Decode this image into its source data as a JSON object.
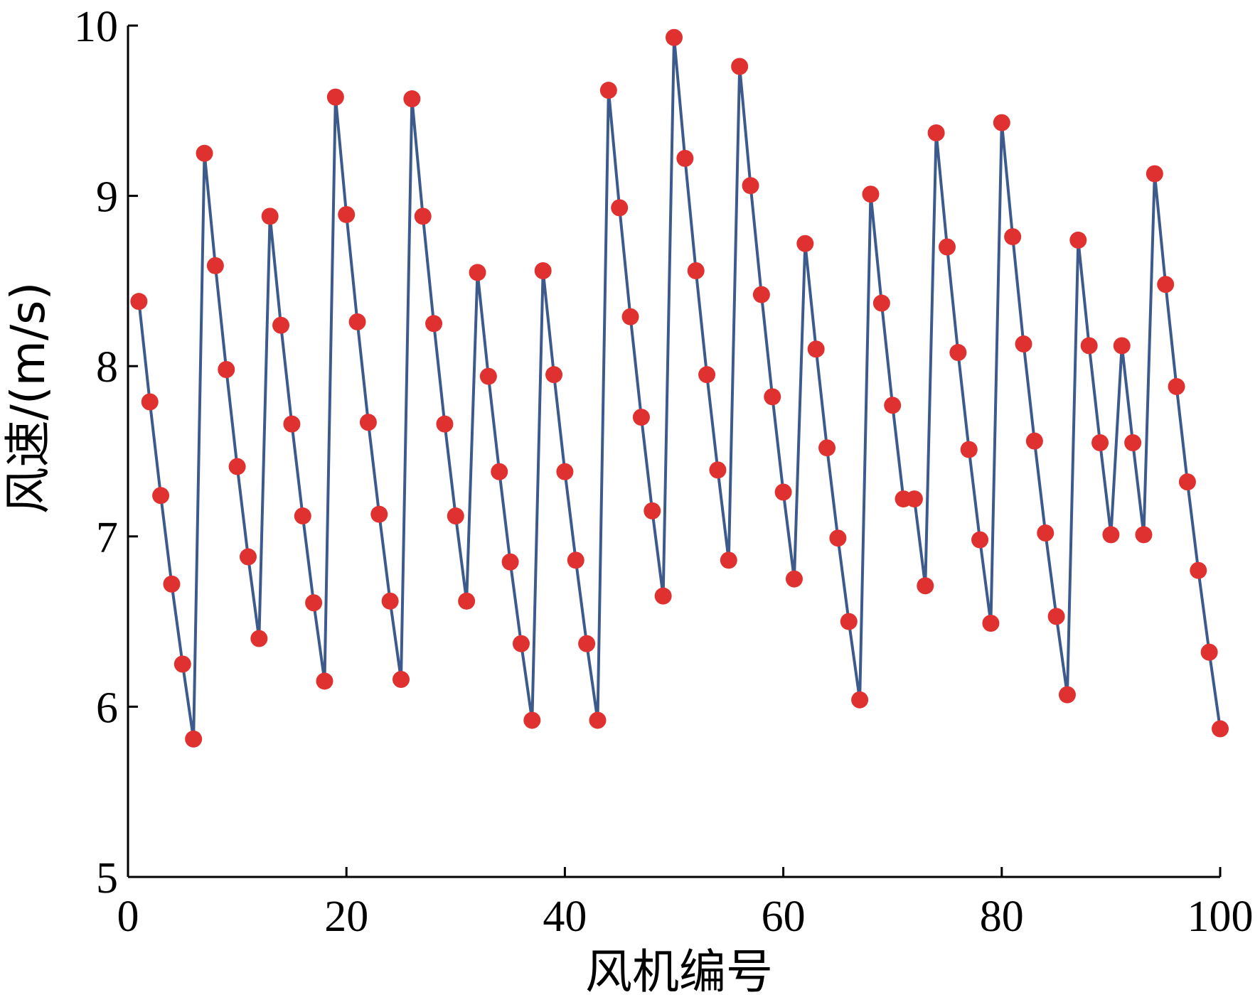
{
  "chart_data": {
    "type": "line",
    "title": "",
    "xlabel": "风机编号",
    "ylabel": "风速/(m/s)",
    "xlim": [
      0,
      100
    ],
    "ylim": [
      5,
      10
    ],
    "x_ticks": [
      0,
      20,
      40,
      60,
      80,
      100
    ],
    "y_ticks": [
      5,
      6,
      7,
      8,
      9,
      10
    ],
    "x_tick_labels": [
      "0",
      "20",
      "40",
      "60",
      "80",
      "100"
    ],
    "y_tick_labels": [
      "5",
      "6",
      "7",
      "8",
      "9",
      "10"
    ],
    "grid": false,
    "legend": "none",
    "colors": {
      "line": "#3d5a8c",
      "marker": "#e03131"
    },
    "series": [
      {
        "x": [
          1,
          2,
          3,
          4,
          5,
          6,
          7,
          8,
          9,
          10,
          11,
          12,
          13,
          14,
          15,
          16,
          17,
          18,
          19,
          20,
          21,
          22,
          23,
          24,
          25,
          26,
          27,
          28,
          29,
          30,
          31,
          32,
          33,
          34,
          35,
          36,
          37,
          38,
          39,
          40,
          41,
          42,
          43,
          44,
          45,
          46,
          47,
          48,
          49,
          50,
          51,
          52,
          53,
          54,
          55,
          56,
          57,
          58,
          59,
          60,
          61,
          62,
          63,
          64,
          65,
          66,
          67,
          68,
          69,
          70,
          71,
          72,
          73,
          74,
          75,
          76,
          77,
          78,
          79,
          80,
          81,
          82,
          83,
          84,
          85,
          86,
          87,
          88,
          89,
          90,
          91,
          92,
          93,
          94,
          95,
          96,
          97,
          98,
          99,
          100
        ],
        "values": [
          8.38,
          7.79,
          7.24,
          6.72,
          6.25,
          5.81,
          9.25,
          8.59,
          7.98,
          7.41,
          6.88,
          6.4,
          8.88,
          8.24,
          7.66,
          7.12,
          6.61,
          6.15,
          9.58,
          8.89,
          8.26,
          7.67,
          7.13,
          6.62,
          6.16,
          9.57,
          8.88,
          8.25,
          7.66,
          7.12,
          6.62,
          8.55,
          7.94,
          7.38,
          6.85,
          6.37,
          5.92,
          8.56,
          7.95,
          7.38,
          6.86,
          6.37,
          5.92,
          9.62,
          8.93,
          8.29,
          7.7,
          7.15,
          6.65,
          9.93,
          9.22,
          8.56,
          7.95,
          7.39,
          6.86,
          9.76,
          9.06,
          8.42,
          7.82,
          7.26,
          6.75,
          8.72,
          8.1,
          7.52,
          6.99,
          6.5,
          6.04,
          9.01,
          8.37,
          7.77,
          7.22,
          7.22,
          6.71,
          9.37,
          8.7,
          8.08,
          7.51,
          6.98,
          6.49,
          9.43,
          8.76,
          8.13,
          7.56,
          7.02,
          6.53,
          6.07,
          8.74,
          8.12,
          7.55,
          7.01,
          8.12,
          7.55,
          7.01,
          9.13,
          8.48,
          7.88,
          7.32,
          6.8,
          6.32,
          5.87
        ]
      }
    ]
  }
}
